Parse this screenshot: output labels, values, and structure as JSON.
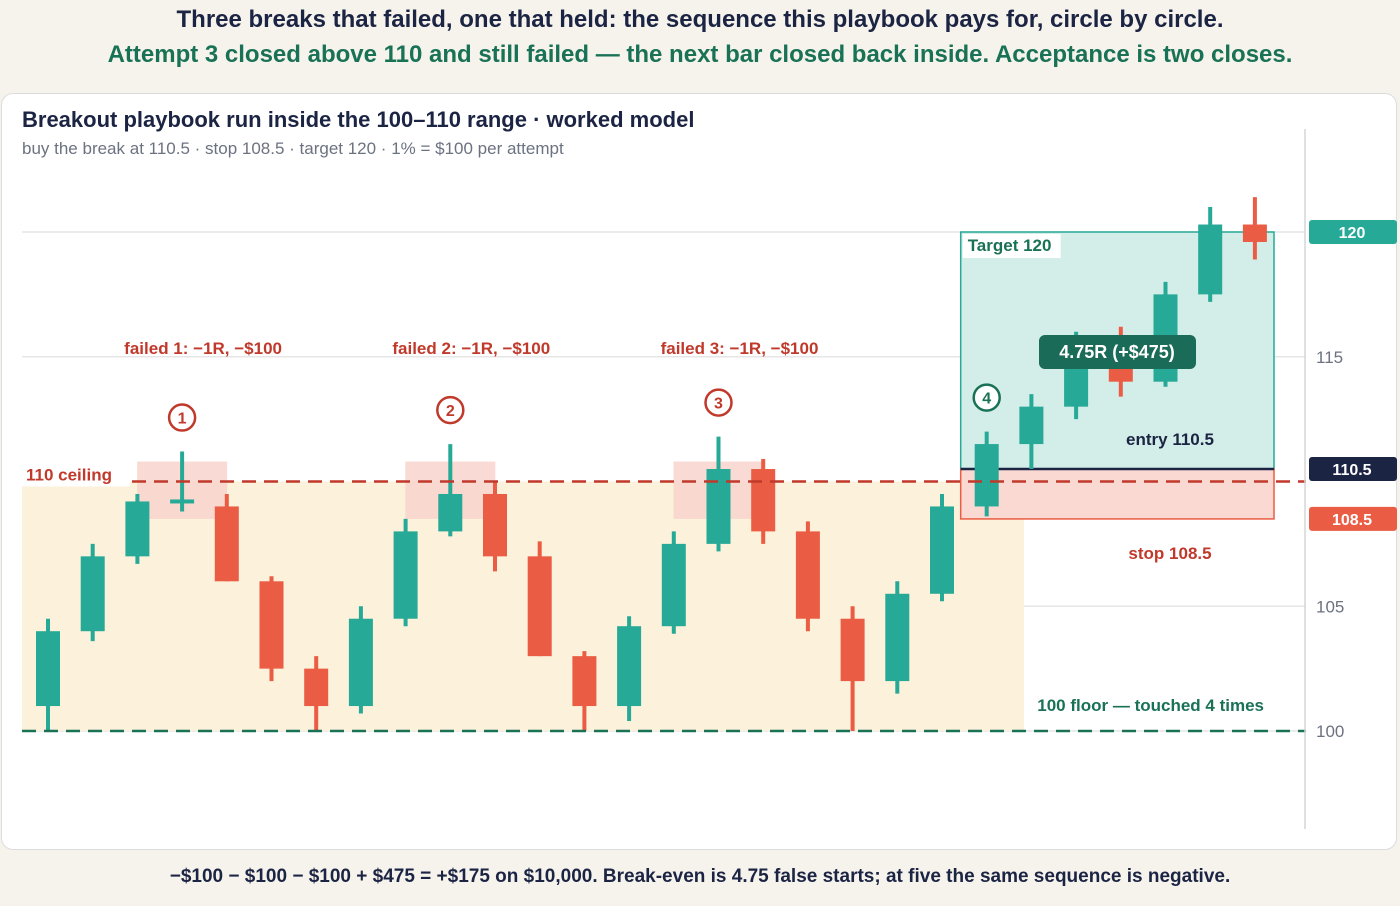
{
  "header": {
    "line1": "Three breaks that failed, one that held: the sequence this playbook pays for, circle by circle.",
    "line2": "Attempt 3 closed above 110 and still failed — the next bar closed back inside. Acceptance is two closes."
  },
  "footer": {
    "text": "−$100 − $100 − $100 + $475 = +$175 on $10,000.  Break-even is 4.75 false starts; at five the same sequence is negative."
  },
  "colors": {
    "up": "#26a996",
    "down": "#ea5c44",
    "ceiling": "#c0392b",
    "floor": "#1a7256",
    "range_fill": "#fcf1da",
    "target_fill": "#d3ede8",
    "stop_fill": "#fad9d3",
    "navy": "#1c2444",
    "grid": "#e6e6e6",
    "axis_text": "#6b7280"
  },
  "chart_data": {
    "type": "candlestick",
    "title": "Breakout playbook run inside the 100–110 range · worked model",
    "subtitle": "buy the break at 110.5 · stop 108.5 · target 120 · 1% = $100 per attempt",
    "y_ticks": [
      100,
      105,
      115
    ],
    "ylim": [
      96,
      124
    ],
    "grid": true,
    "range": {
      "low": 100,
      "high": 110
    },
    "ceiling_label": "110 ceiling",
    "floor_label": "100 floor — touched 4 times",
    "candles": [
      {
        "open": 101,
        "high": 104.5,
        "low": 100,
        "close": 104
      },
      {
        "open": 104,
        "high": 107.5,
        "low": 103.6,
        "close": 107
      },
      {
        "open": 107,
        "high": 109.5,
        "low": 106.7,
        "close": 109.2
      },
      {
        "open": 109.2,
        "high": 111.2,
        "low": 108.8,
        "close": 109.2
      },
      {
        "open": 109,
        "high": 109.5,
        "low": 106,
        "close": 106
      },
      {
        "open": 106,
        "high": 106.2,
        "low": 102,
        "close": 102.5
      },
      {
        "open": 102.5,
        "high": 103,
        "low": 100,
        "close": 101
      },
      {
        "open": 101,
        "high": 105,
        "low": 100.7,
        "close": 104.5
      },
      {
        "open": 104.5,
        "high": 108.5,
        "low": 104.2,
        "close": 108
      },
      {
        "open": 108,
        "high": 111.5,
        "low": 107.8,
        "close": 109.5
      },
      {
        "open": 109.5,
        "high": 110,
        "low": 106.4,
        "close": 107
      },
      {
        "open": 107,
        "high": 107.6,
        "low": 103,
        "close": 103
      },
      {
        "open": 103,
        "high": 103.2,
        "low": 100,
        "close": 101
      },
      {
        "open": 101,
        "high": 104.6,
        "low": 100.4,
        "close": 104.2
      },
      {
        "open": 104.2,
        "high": 108,
        "low": 103.9,
        "close": 107.5
      },
      {
        "open": 107.5,
        "high": 111.8,
        "low": 107.2,
        "close": 110.5
      },
      {
        "open": 110.5,
        "high": 110.9,
        "low": 107.5,
        "close": 108
      },
      {
        "open": 108,
        "high": 108.4,
        "low": 104,
        "close": 104.5
      },
      {
        "open": 104.5,
        "high": 105,
        "low": 100,
        "close": 102
      },
      {
        "open": 102,
        "high": 106,
        "low": 101.5,
        "close": 105.5
      },
      {
        "open": 105.5,
        "high": 109.5,
        "low": 105.2,
        "close": 109
      },
      {
        "open": 109,
        "high": 112,
        "low": 108.6,
        "close": 111.5
      },
      {
        "open": 111.5,
        "high": 113.5,
        "low": 110.5,
        "close": 113
      },
      {
        "open": 113,
        "high": 116,
        "low": 112.5,
        "close": 115.5
      },
      {
        "open": 115.5,
        "high": 116.2,
        "low": 113.4,
        "close": 114
      },
      {
        "open": 114,
        "high": 118,
        "low": 113.8,
        "close": 117.5
      },
      {
        "open": 117.5,
        "high": 121,
        "low": 117.2,
        "close": 120.3
      },
      {
        "open": 120.3,
        "high": 121.4,
        "low": 118.9,
        "close": 119.6
      }
    ],
    "attempts": [
      {
        "number": "1",
        "candle": 3,
        "label": "failed 1: −1R, −$100"
      },
      {
        "number": "2",
        "candle": 9,
        "label": "failed 2: −1R, −$100"
      },
      {
        "number": "3",
        "candle": 15,
        "label": "failed 3: −1R, −$100"
      },
      {
        "number": "4",
        "candle": 21,
        "label": ""
      }
    ],
    "trade": {
      "entry": 110.5,
      "stop": 108.5,
      "target": 120,
      "entry_label": "entry 110.5",
      "stop_label": "stop 108.5",
      "target_label": "Target 120",
      "result_label": "4.75R  (+$475)"
    },
    "price_tags": [
      {
        "value": 120,
        "label": "120"
      },
      {
        "value": 110.5,
        "label": "110.5"
      },
      {
        "value": 108.5,
        "label": "108.5"
      }
    ]
  }
}
